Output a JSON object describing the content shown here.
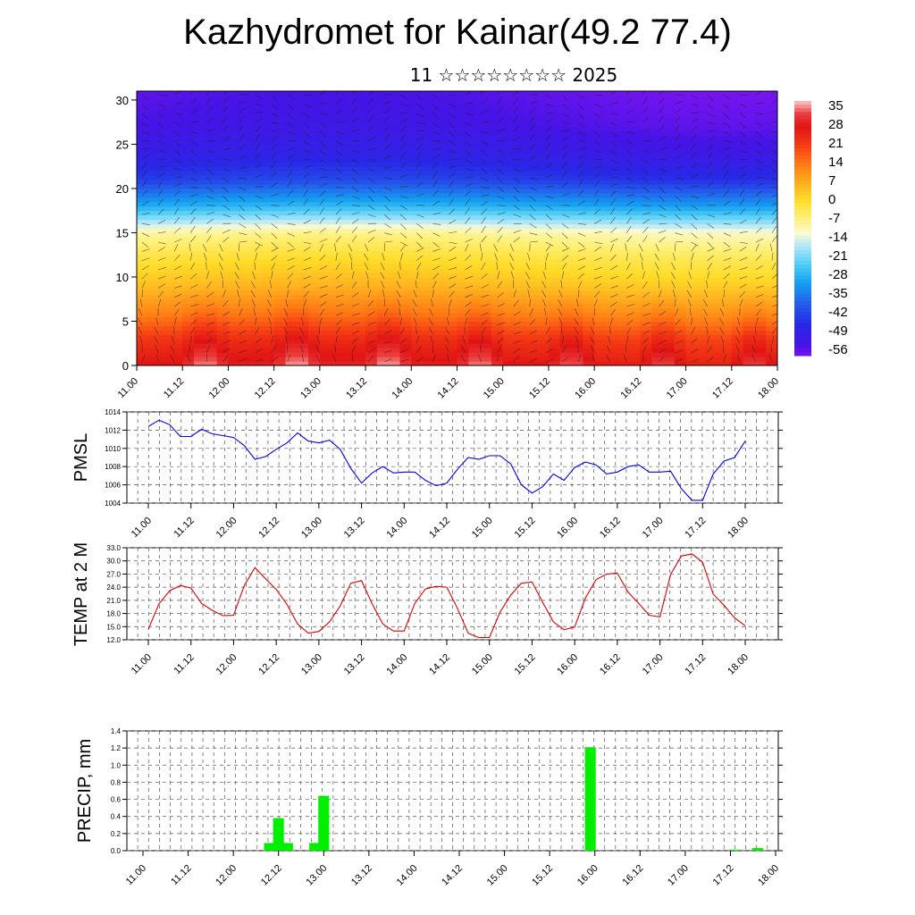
{
  "title": "Kazhydromet for Kainar(49.2 77.4)",
  "subtitle": "11 ☆☆☆☆☆☆☆☆ 2025",
  "x_tick_labels": [
    "11.00",
    "11.12",
    "12.00",
    "12.12",
    "13.00",
    "13.12",
    "14.00",
    "14.12",
    "15.00",
    "15.12",
    "16.00",
    "16.12",
    "17.00",
    "17.12",
    "18.00"
  ],
  "colors": {
    "pmsl_line": "#0000ee",
    "temp_line": "#dd0000",
    "precip_bar": "#00ee00"
  },
  "chart_data": [
    {
      "type": "heatmap",
      "name": "upper-air temperature and wind cross-section",
      "ylim": [
        0,
        31
      ],
      "y_ticks": [
        "0",
        "5",
        "10",
        "15",
        "20",
        "25",
        "30"
      ],
      "colorbar": {
        "labels": [
          "35",
          "28",
          "21",
          "14",
          "7",
          "0",
          "-7",
          "-14",
          "-21",
          "-28",
          "-35",
          "-42",
          "-49",
          "-56"
        ],
        "range": [
          -60,
          38
        ]
      },
      "profile": {
        "levels": [
          0,
          3,
          6,
          9,
          12,
          15,
          18,
          21,
          24,
          27,
          31
        ],
        "temperatures": [
          28,
          22,
          12,
          4,
          -2,
          -10,
          -30,
          -45,
          -52,
          -56,
          -58
        ]
      }
    },
    {
      "type": "line",
      "ylabel": "PMSL",
      "ylim": [
        1004,
        1014
      ],
      "y_ticks": [
        "1004",
        "1006",
        "1008",
        "1010",
        "1012",
        "1014"
      ],
      "series": [
        {
          "values": [
            1012.4,
            1013.1,
            1012.6,
            1011.3,
            1011.3,
            1012.1,
            1011.6,
            1011.4,
            1011.2,
            1010.3,
            1008.8,
            1009.1,
            1009.9,
            1010.6,
            1011.7,
            1010.8,
            1010.6,
            1010.9,
            1009.9,
            1007.8,
            1006.2,
            1007.3,
            1008.0,
            1007.3,
            1007.4,
            1007.4,
            1006.5,
            1005.9,
            1006.2,
            1007.7,
            1009.0,
            1008.8,
            1009.2,
            1009.2,
            1008.3,
            1006.0,
            1005.1,
            1005.8,
            1007.2,
            1006.5,
            1007.9,
            1008.5,
            1008.2,
            1007.2,
            1007.4,
            1008.0,
            1008.2,
            1007.4,
            1007.4,
            1007.5,
            1005.6,
            1004.3,
            1004.3,
            1007.2,
            1008.6,
            1009.0,
            1010.8
          ]
        }
      ]
    },
    {
      "type": "line",
      "ylabel": "TEMP at 2 M",
      "ylim": [
        12,
        33
      ],
      "y_ticks": [
        "12.0",
        "15.0",
        "18.0",
        "21.0",
        "24.0",
        "27.0",
        "30.0",
        "33.0"
      ],
      "series": [
        {
          "values": [
            14.4,
            20.2,
            23.2,
            24.4,
            23.8,
            20.3,
            18.7,
            17.5,
            17.6,
            24.4,
            28.5,
            25.9,
            23.5,
            20.1,
            15.6,
            13.5,
            13.9,
            16.1,
            19.7,
            24.9,
            25.5,
            20.2,
            15.6,
            14.0,
            14.0,
            20.3,
            23.6,
            24.2,
            24.0,
            19.2,
            13.5,
            12.5,
            12.5,
            18.3,
            22.2,
            24.9,
            25.2,
            20.5,
            16.1,
            14.3,
            14.9,
            21.5,
            25.7,
            27.0,
            27.2,
            22.9,
            20.3,
            17.6,
            17.2,
            26.9,
            31.1,
            31.6,
            29.7,
            22.4,
            19.9,
            17.0,
            15.2
          ]
        }
      ]
    },
    {
      "type": "bar",
      "ylabel": "PRECIP, mm",
      "ylim": [
        0,
        1.4
      ],
      "y_ticks": [
        "0.0",
        "0.2",
        "0.4",
        "0.6",
        "0.8",
        "1.0",
        "1.2",
        "1.4"
      ],
      "bars": [
        {
          "x": 1.4,
          "value": 0.09
        },
        {
          "x": 1.5,
          "value": 0.38
        },
        {
          "x": 1.6,
          "value": 0.09
        },
        {
          "x": 1.9,
          "value": 0.09
        },
        {
          "x": 2.0,
          "value": 0.64
        },
        {
          "x": 4.95,
          "value": 1.21
        },
        {
          "x": 6.55,
          "value": 0.01
        },
        {
          "x": 6.8,
          "value": 0.03
        }
      ]
    }
  ]
}
